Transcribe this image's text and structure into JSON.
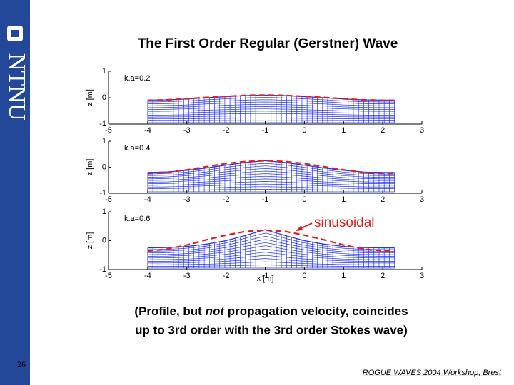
{
  "header": {
    "title": "The First Order Regular (Gerstner) Wave"
  },
  "sidebar": {
    "logo_text": "NTNU"
  },
  "chart_data": [
    {
      "type": "line",
      "label": "k.a=0.2",
      "ylabel": "z [m]",
      "x": [
        -4,
        -3.5,
        -3,
        -2.5,
        -2,
        -1.5,
        -1,
        -0.5,
        0,
        0.5,
        1,
        1.5,
        2,
        2.3
      ],
      "series": [
        {
          "color": "#2233ee",
          "values": [
            -0.09,
            -0.08,
            -0.05,
            0,
            0.04,
            0.08,
            0.1,
            0.08,
            0.04,
            0,
            -0.05,
            -0.08,
            -0.09,
            -0.09
          ]
        },
        {
          "color": "#e02020",
          "dashed": true,
          "values": [
            -0.1,
            -0.08,
            -0.04,
            0.01,
            0.05,
            0.09,
            0.1,
            0.09,
            0.05,
            0.01,
            -0.04,
            -0.08,
            -0.1,
            -0.1
          ]
        }
      ],
      "xlim": [
        -5,
        3
      ],
      "ylim": [
        -1,
        1
      ],
      "xticks": [
        -5,
        -4,
        -3,
        -2,
        -1,
        0,
        1,
        2,
        3
      ],
      "yticks": [
        -1,
        0,
        1
      ]
    },
    {
      "type": "line",
      "label": "k.a=0.4",
      "ylabel": "z [m]",
      "x": [
        -4,
        -3.5,
        -3,
        -2.5,
        -2,
        -1.5,
        -1,
        -0.5,
        0,
        0.5,
        1,
        1.5,
        2,
        2.3
      ],
      "series": [
        {
          "color": "#2233ee",
          "values": [
            -0.2,
            -0.18,
            -0.12,
            -0.03,
            0.08,
            0.18,
            0.25,
            0.18,
            0.08,
            -0.03,
            -0.12,
            -0.18,
            -0.2,
            -0.2
          ]
        },
        {
          "color": "#e02020",
          "dashed": true,
          "values": [
            -0.25,
            -0.2,
            -0.1,
            0.02,
            0.14,
            0.22,
            0.25,
            0.22,
            0.14,
            0.02,
            -0.1,
            -0.2,
            -0.25,
            -0.25
          ]
        }
      ],
      "xlim": [
        -5,
        3
      ],
      "ylim": [
        -1,
        1
      ],
      "xticks": [
        -5,
        -4,
        -3,
        -2,
        -1,
        0,
        1,
        2,
        3
      ],
      "yticks": [
        -1,
        0,
        1
      ]
    },
    {
      "type": "line",
      "label": "k.a=0.6",
      "ylabel": "z [m]",
      "xlabel": "x [m]",
      "x": [
        -4,
        -3.5,
        -3,
        -2.5,
        -2,
        -1.5,
        -1,
        -0.5,
        0,
        0.5,
        1,
        1.5,
        2,
        2.3
      ],
      "series": [
        {
          "color": "#2233ee",
          "values": [
            -0.25,
            -0.24,
            -0.2,
            -0.12,
            0,
            0.18,
            0.38,
            0.18,
            0,
            -0.12,
            -0.2,
            -0.24,
            -0.25,
            -0.25
          ]
        },
        {
          "color": "#e02020",
          "dashed": true,
          "values": [
            -0.36,
            -0.29,
            -0.15,
            0.03,
            0.19,
            0.32,
            0.36,
            0.32,
            0.19,
            0.03,
            -0.15,
            -0.29,
            -0.36,
            -0.36
          ]
        }
      ],
      "xlim": [
        -5,
        3
      ],
      "ylim": [
        -1,
        1
      ],
      "xticks": [
        -5,
        -4,
        -3,
        -2,
        -1,
        0,
        1,
        2,
        3
      ],
      "yticks": [
        -1,
        0,
        1
      ]
    }
  ],
  "annotation": "sinusoidal",
  "caption": {
    "part1": "(Profile, but ",
    "emphasis": "not",
    "part2": " propagation velocity, coincides",
    "line2": "up to 3rd order with the 3rd order Stokes wave)"
  },
  "page_number": "26",
  "footer": "ROGUE WAVES 2004 Workshop, Brest"
}
